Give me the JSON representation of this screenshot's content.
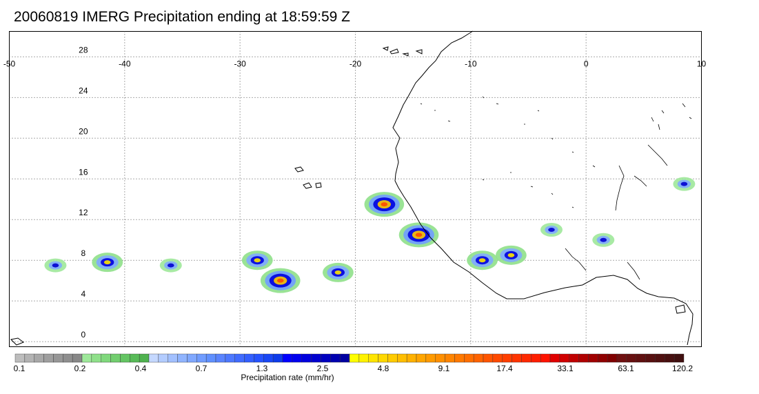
{
  "title": "20060819 IMERG Precipitation ending at 18:59:59 Z",
  "map": {
    "lon_range": [
      -50,
      10
    ],
    "lat_range": [
      -0.5,
      30.5
    ],
    "lon_ticks": [
      -50,
      -40,
      -30,
      -20,
      -10,
      0,
      10
    ],
    "lat_ticks": [
      0,
      4,
      8,
      12,
      16,
      20,
      24,
      28
    ],
    "grid": true,
    "grid_style": "dotted",
    "coastline_color": "#000000"
  },
  "colorbar": {
    "title": "Precipitation rate (mm/hr)",
    "labels": [
      "0.1",
      "0.2",
      "0.4",
      "0.7",
      "1.3",
      "2.5",
      "4.8",
      "9.1",
      "17.4",
      "33.1",
      "63.1",
      "120.2"
    ],
    "colors": [
      "#bdbdbd",
      "#b3b3b3",
      "#a8a8a8",
      "#9f9f9f",
      "#979797",
      "#8f8f8f",
      "#888888",
      "#9ee89a",
      "#8fe08a",
      "#80d87c",
      "#72ce6f",
      "#64c563",
      "#58bb58",
      "#4fb24f",
      "#c5d8ff",
      "#b3ccff",
      "#a2c0ff",
      "#90b4ff",
      "#80a8ff",
      "#709cff",
      "#6090ff",
      "#5a84ff",
      "#4d78ff",
      "#406bff",
      "#335fff",
      "#2653ff",
      "#1947f5",
      "#0d3bea",
      "#0000ff",
      "#0000ef",
      "#0000df",
      "#0000cf",
      "#0000c0",
      "#0000b0",
      "#0000a0",
      "#ffff00",
      "#fff200",
      "#ffe500",
      "#ffd800",
      "#ffcb00",
      "#ffbe00",
      "#ffb100",
      "#ffa500",
      "#ff9a00",
      "#ff8f00",
      "#ff8400",
      "#ff7900",
      "#ff6e00",
      "#ff6300",
      "#ff5500",
      "#ff4a00",
      "#ff3f00",
      "#ff3400",
      "#ff2900",
      "#ff1e00",
      "#ff1300",
      "#e00000",
      "#d00000",
      "#c00000",
      "#b00000",
      "#a00000",
      "#900000",
      "#800000",
      "#701010",
      "#681010",
      "#601010",
      "#581010",
      "#501010",
      "#481010",
      "#401010"
    ]
  },
  "precip_cells": [
    {
      "lon": -26.5,
      "lat": 6.0,
      "level": "heavy"
    },
    {
      "lon": -17.5,
      "lat": 13.5,
      "level": "heavy"
    },
    {
      "lon": -14.5,
      "lat": 10.5,
      "level": "heavy"
    },
    {
      "lon": -41.5,
      "lat": 7.8,
      "level": "moderate"
    },
    {
      "lon": -21.5,
      "lat": 6.8,
      "level": "moderate"
    },
    {
      "lon": -28.5,
      "lat": 8.0,
      "level": "moderate"
    },
    {
      "lon": -9.0,
      "lat": 8.0,
      "level": "moderate"
    },
    {
      "lon": -6.5,
      "lat": 8.5,
      "level": "moderate"
    },
    {
      "lon": 1.5,
      "lat": 10.0,
      "level": "light"
    },
    {
      "lon": 8.5,
      "lat": 15.5,
      "level": "light"
    },
    {
      "lon": -36.0,
      "lat": 7.5,
      "level": "light"
    },
    {
      "lon": -46.0,
      "lat": 7.5,
      "level": "light"
    },
    {
      "lon": -3.0,
      "lat": 11.0,
      "level": "light"
    }
  ]
}
